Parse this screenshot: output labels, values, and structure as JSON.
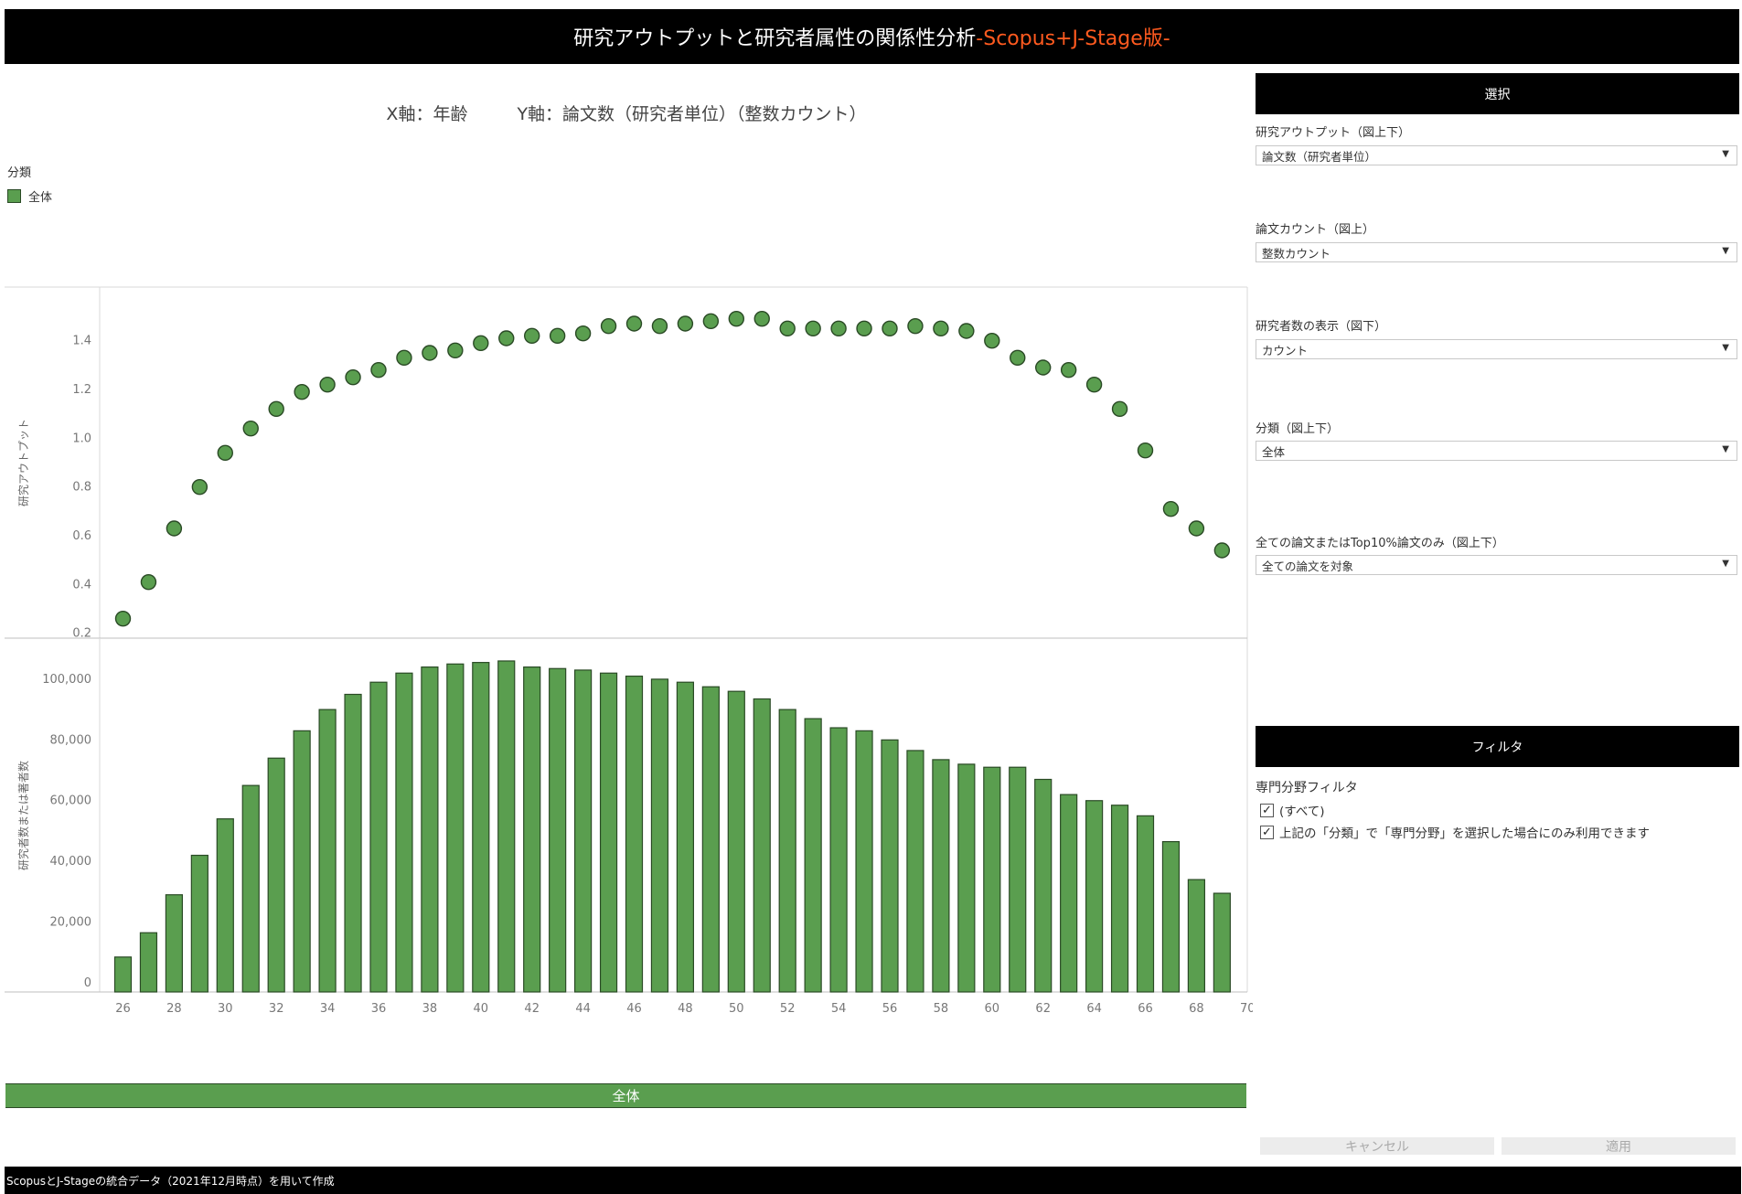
{
  "title": {
    "main": "研究アウトプットと研究者属性の関係性分析",
    "accent": "-Scopus+J-Stage版-"
  },
  "axes_caption": {
    "x": "X軸：年齢",
    "y": "Y軸：論文数（研究者単位）（整数カウント）"
  },
  "legend": {
    "title": "分類",
    "item": "全体"
  },
  "colors": {
    "mark": "#5a9e4f",
    "mark_stroke": "#2a4a25",
    "accent": "#ff5a1f",
    "header_bg": "#000000"
  },
  "chart_data": [
    {
      "type": "scatter",
      "ylabel": "研究アウトプット",
      "ylim": [
        0.18,
        1.62
      ],
      "y_ticks": [
        "0.2",
        "0.4",
        "0.6",
        "0.8",
        "1.0",
        "1.2",
        "1.4"
      ],
      "x": [
        26,
        27,
        28,
        29,
        30,
        31,
        32,
        33,
        34,
        35,
        36,
        37,
        38,
        39,
        40,
        41,
        42,
        43,
        44,
        45,
        46,
        47,
        48,
        49,
        50,
        51,
        52,
        53,
        54,
        55,
        56,
        57,
        58,
        59,
        60,
        61,
        62,
        63,
        64,
        65,
        66,
        67,
        68,
        69
      ],
      "values": [
        0.26,
        0.41,
        0.63,
        0.8,
        0.94,
        1.04,
        1.12,
        1.19,
        1.22,
        1.25,
        1.28,
        1.33,
        1.35,
        1.36,
        1.39,
        1.41,
        1.42,
        1.42,
        1.43,
        1.46,
        1.47,
        1.46,
        1.47,
        1.48,
        1.49,
        1.49,
        1.45,
        1.45,
        1.45,
        1.45,
        1.45,
        1.46,
        1.45,
        1.44,
        1.4,
        1.33,
        1.29,
        1.28,
        1.22,
        1.12,
        0.95,
        0.71,
        0.63,
        0.54
      ]
    },
    {
      "type": "bar",
      "ylabel": "研究者数または著者数",
      "ylim": [
        0,
        112000
      ],
      "y_ticks": [
        "0",
        "20,000",
        "40,000",
        "60,000",
        "80,000",
        "100,000"
      ],
      "x": [
        26,
        27,
        28,
        29,
        30,
        31,
        32,
        33,
        34,
        35,
        36,
        37,
        38,
        39,
        40,
        41,
        42,
        43,
        44,
        45,
        46,
        47,
        48,
        49,
        50,
        51,
        52,
        53,
        54,
        55,
        56,
        57,
        58,
        59,
        60,
        61,
        62,
        63,
        64,
        65,
        66,
        67,
        68,
        69
      ],
      "values": [
        11500,
        19500,
        32000,
        45000,
        57000,
        68000,
        77000,
        86000,
        93000,
        98000,
        102000,
        105000,
        107000,
        108000,
        108500,
        109000,
        107000,
        106500,
        106000,
        105000,
        104000,
        103000,
        102000,
        100500,
        99000,
        96500,
        93000,
        90000,
        87000,
        86000,
        83000,
        79500,
        76500,
        75000,
        74000,
        74000,
        70000,
        65000,
        63000,
        61500,
        58000,
        49500,
        37000,
        32500
      ]
    },
    {
      "type": "axis",
      "xlabel": "",
      "x_ticks": [
        "26",
        "28",
        "30",
        "32",
        "34",
        "36",
        "38",
        "40",
        "42",
        "44",
        "46",
        "48",
        "50",
        "52",
        "54",
        "56",
        "58",
        "60",
        "62",
        "64",
        "66",
        "68",
        "70"
      ]
    }
  ],
  "banner": "全体",
  "footer": "ScopusとJ-Stageの統合データ（2021年12月時点）を用いて作成",
  "panel": {
    "select_header": "選択",
    "controls": [
      {
        "label": "研究アウトプット（図上下）",
        "value": "論文数（研究者単位）"
      },
      {
        "label": "論文カウント（図上）",
        "value": "整数カウント"
      },
      {
        "label": "研究者数の表示（図下）",
        "value": "カウント"
      },
      {
        "label": "分類（図上下）",
        "value": "全体"
      },
      {
        "label": "全ての論文またはTop10%論文のみ（図上下）",
        "value": "全ての論文を対象"
      }
    ],
    "filter_header": "フィルタ",
    "filter_title": "専門分野フィルタ",
    "checks": [
      "(すべて)",
      "上記の「分類」で「専門分野」を選択した場合にのみ利用できます"
    ],
    "cancel": "キャンセル",
    "apply": "適用"
  }
}
